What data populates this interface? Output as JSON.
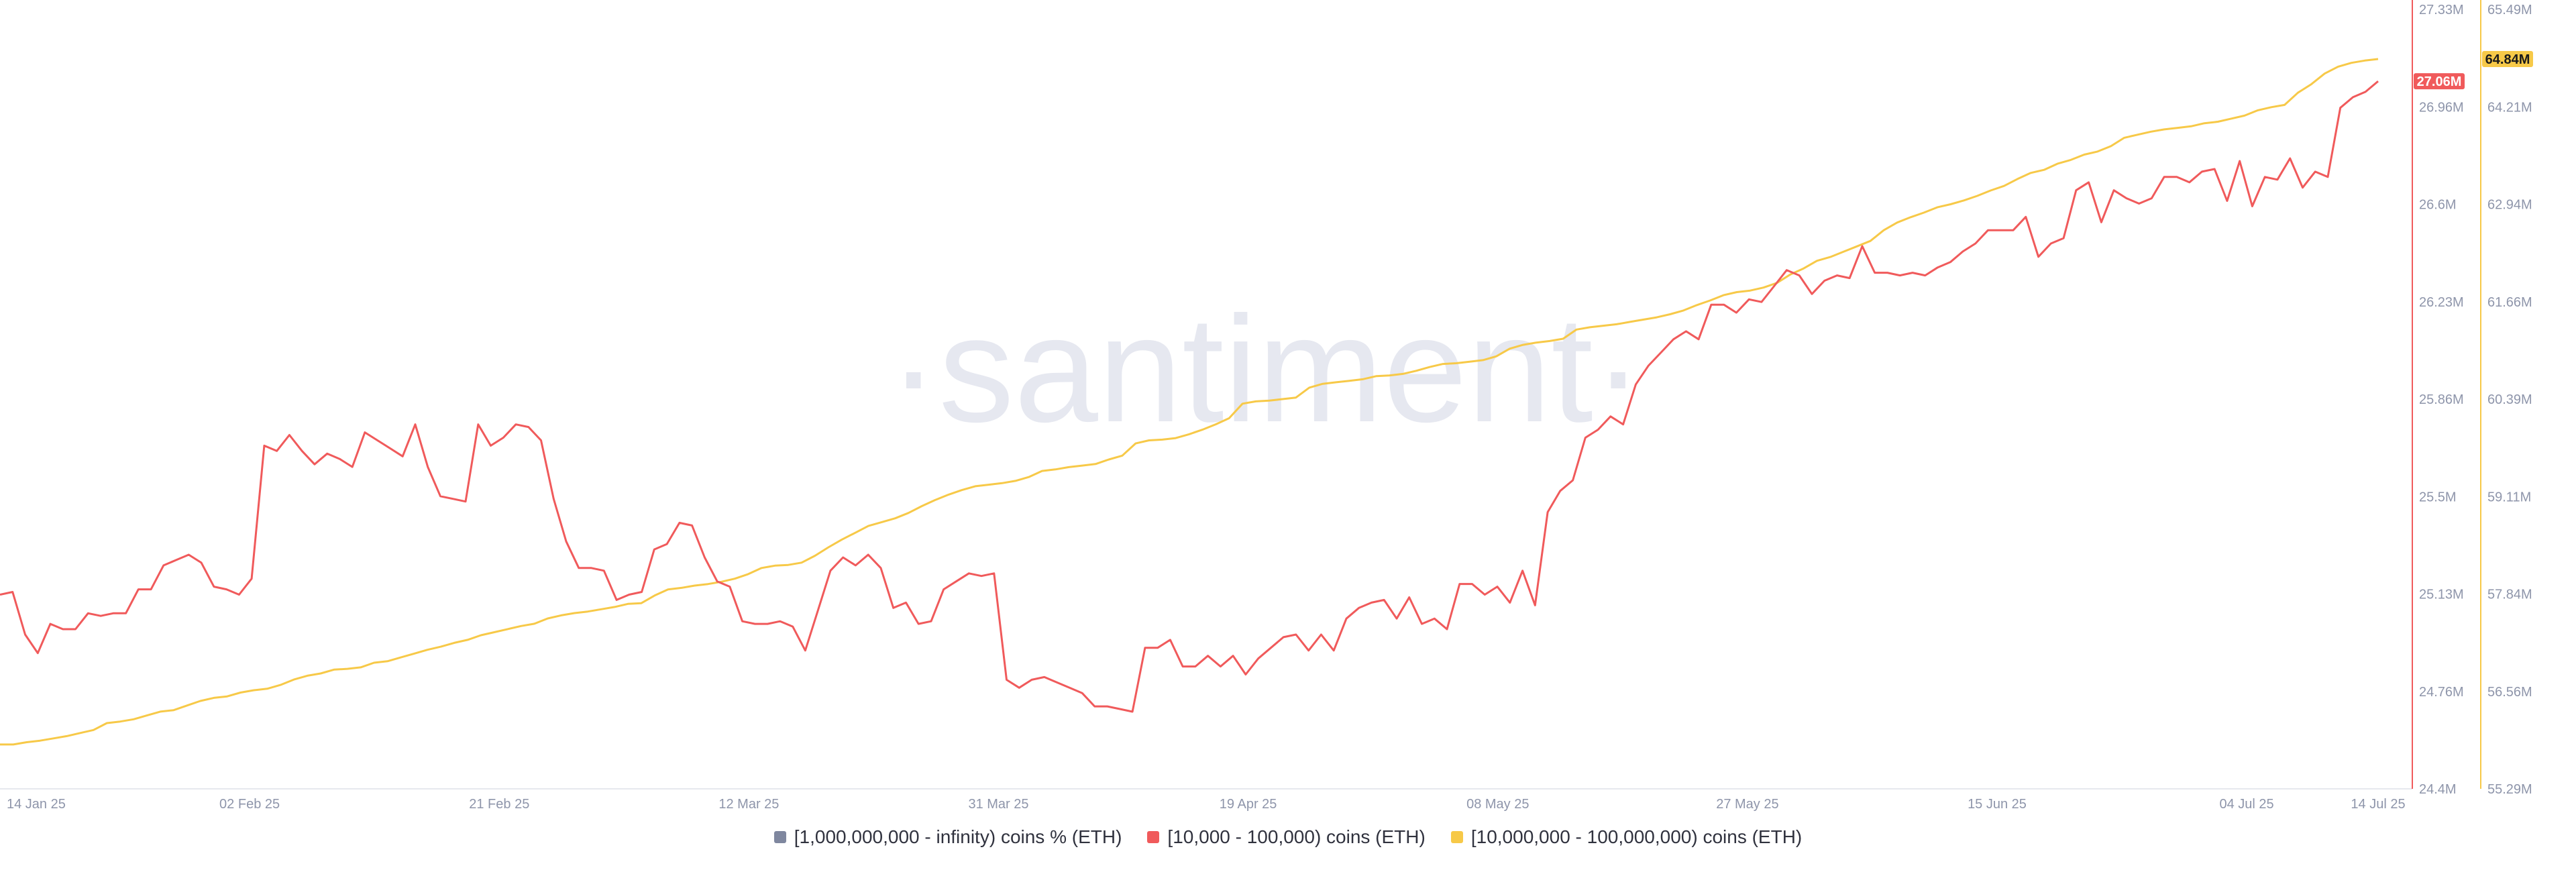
{
  "watermark": "·santiment·",
  "chart_data": {
    "type": "line",
    "x_range": [
      "2025-01-14",
      "2025-07-14"
    ],
    "x_ticks": [
      "14 Jan 25",
      "02 Feb 25",
      "21 Feb 25",
      "12 Mar 25",
      "31 Mar 25",
      "19 Apr 25",
      "08 May 25",
      "27 May 25",
      "15 Jun 25",
      "04 Jul 25",
      "14 Jul 25"
    ],
    "y_axes": [
      {
        "id": "red",
        "color": "#f05a5b",
        "ticks": [
          "27.33M",
          "26.96M",
          "26.6M",
          "26.23M",
          "25.86M",
          "25.5M",
          "25.13M",
          "24.76M",
          "24.4M"
        ],
        "range": [
          24.4,
          27.33
        ]
      },
      {
        "id": "yellow",
        "color": "#f7c948",
        "ticks": [
          "65.49M",
          "64.21M",
          "62.94M",
          "61.66M",
          "60.39M",
          "59.11M",
          "57.84M",
          "56.56M",
          "55.29M"
        ],
        "range": [
          55.29,
          65.49
        ]
      }
    ],
    "last_value_tags": [
      {
        "axis": "red",
        "value": 27.06,
        "label": "27.06M",
        "bg": "#f05a5b",
        "fg": "#ffffff"
      },
      {
        "axis": "yellow",
        "value": 64.84,
        "label": "64.84M",
        "bg": "#f7c948",
        "fg": "#1a1a1a"
      }
    ],
    "series": [
      {
        "name": "[1,000,000,000 - infinity) coins % (ETH)",
        "color": "#7f879f",
        "axis": null,
        "values": []
      },
      {
        "name": "[10,000 - 100,000) coins (ETH)",
        "color": "#f05a5b",
        "axis": "red",
        "values": [
          25.13,
          25.14,
          24.98,
          24.91,
          25.02,
          25.0,
          25.0,
          25.06,
          25.05,
          25.06,
          25.06,
          25.15,
          25.15,
          25.24,
          25.26,
          25.28,
          25.25,
          25.16,
          25.15,
          25.13,
          25.19,
          25.69,
          25.67,
          25.73,
          25.67,
          25.62,
          25.66,
          25.64,
          25.61,
          25.74,
          25.71,
          25.68,
          25.65,
          25.77,
          25.61,
          25.5,
          25.49,
          25.48,
          25.77,
          25.69,
          25.72,
          25.77,
          25.76,
          25.71,
          25.49,
          25.33,
          25.23,
          25.23,
          25.22,
          25.11,
          25.13,
          25.14,
          25.3,
          25.32,
          25.4,
          25.39,
          25.27,
          25.18,
          25.16,
          25.03,
          25.02,
          25.02,
          25.03,
          25.01,
          24.92,
          25.07,
          25.22,
          25.27,
          25.24,
          25.28,
          25.23,
          25.08,
          25.1,
          25.02,
          25.03,
          25.15,
          25.18,
          25.21,
          25.2,
          25.21,
          24.81,
          24.78,
          24.81,
          24.82,
          24.8,
          24.78,
          24.76,
          24.71,
          24.71,
          24.7,
          24.69,
          24.93,
          24.93,
          24.96,
          24.86,
          24.86,
          24.9,
          24.86,
          24.9,
          24.83,
          24.89,
          24.93,
          24.97,
          24.98,
          24.92,
          24.98,
          24.92,
          25.04,
          25.08,
          25.1,
          25.11,
          25.04,
          25.12,
          25.02,
          25.04,
          25.0,
          25.17,
          25.17,
          25.13,
          25.16,
          25.1,
          25.22,
          25.09,
          25.44,
          25.52,
          25.56,
          25.72,
          25.75,
          25.8,
          25.77,
          25.92,
          25.99,
          26.04,
          26.09,
          26.12,
          26.09,
          26.22,
          26.22,
          26.19,
          26.24,
          26.23,
          26.29,
          26.35,
          26.33,
          26.26,
          26.31,
          26.33,
          26.32,
          26.44,
          26.34,
          26.34,
          26.33,
          26.34,
          26.33,
          26.36,
          26.38,
          26.42,
          26.45,
          26.5,
          26.5,
          26.5,
          26.55,
          26.4,
          26.45,
          26.47,
          26.65,
          26.68,
          26.53,
          26.65,
          26.62,
          26.6,
          26.62,
          26.7,
          26.7,
          26.68,
          26.72,
          26.73,
          26.61,
          26.76,
          26.59,
          26.7,
          26.69,
          26.77,
          26.66,
          26.72,
          26.7,
          26.96,
          27.0,
          27.02,
          27.06
        ]
      },
      {
        "name": "[10,000,000 - 100,000,000) coins (ETH)",
        "color": "#f7c948",
        "axis": "yellow",
        "values": [
          55.87,
          55.87,
          55.9,
          55.92,
          55.95,
          55.98,
          56.02,
          56.06,
          56.15,
          56.17,
          56.2,
          56.25,
          56.3,
          56.32,
          56.38,
          56.44,
          56.48,
          56.5,
          56.55,
          56.58,
          56.6,
          56.65,
          56.72,
          56.77,
          56.8,
          56.85,
          56.86,
          56.88,
          56.94,
          56.96,
          57.01,
          57.06,
          57.11,
          57.15,
          57.2,
          57.24,
          57.3,
          57.34,
          57.38,
          57.42,
          57.45,
          57.52,
          57.56,
          57.59,
          57.61,
          57.64,
          57.67,
          57.71,
          57.72,
          57.82,
          57.9,
          57.92,
          57.95,
          57.97,
          58.0,
          58.04,
          58.1,
          58.18,
          58.21,
          58.22,
          58.25,
          58.34,
          58.45,
          58.55,
          58.64,
          58.73,
          58.78,
          58.83,
          58.9,
          58.99,
          59.07,
          59.14,
          59.2,
          59.25,
          59.27,
          59.29,
          59.32,
          59.37,
          59.45,
          59.47,
          59.5,
          59.52,
          59.54,
          59.6,
          59.65,
          59.81,
          59.85,
          59.86,
          59.88,
          59.93,
          59.99,
          60.06,
          60.14,
          60.33,
          60.36,
          60.37,
          60.39,
          60.41,
          60.54,
          60.59,
          60.61,
          60.63,
          60.65,
          60.69,
          60.7,
          60.72,
          60.76,
          60.81,
          60.85,
          60.86,
          60.88,
          60.9,
          60.95,
          61.05,
          61.1,
          61.13,
          61.15,
          61.18,
          61.3,
          61.33,
          61.35,
          61.37,
          61.4,
          61.43,
          61.46,
          61.5,
          61.55,
          61.62,
          61.68,
          61.75,
          61.79,
          61.81,
          61.85,
          61.91,
          62.02,
          62.1,
          62.2,
          62.25,
          62.32,
          62.39,
          62.46,
          62.6,
          62.7,
          62.77,
          62.83,
          62.9,
          62.94,
          62.99,
          63.05,
          63.12,
          63.18,
          63.27,
          63.35,
          63.39,
          63.47,
          63.52,
          63.59,
          63.63,
          63.7,
          63.81,
          63.85,
          63.89,
          63.92,
          63.94,
          63.96,
          64.0,
          64.02,
          64.06,
          64.1,
          64.17,
          64.21,
          64.24,
          64.4,
          64.51,
          64.65,
          64.74,
          64.79,
          64.82,
          64.84
        ]
      }
    ],
    "legend_position": "bottom-center",
    "grid": false
  }
}
